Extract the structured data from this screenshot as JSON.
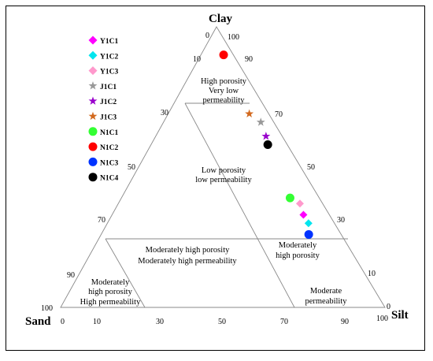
{
  "vertices": {
    "top": "Clay",
    "left": "Sand",
    "right": "Silt"
  },
  "ticks": {
    "left_edge": [
      {
        "label": "0"
      },
      {
        "label": "10"
      },
      {
        "label": "30"
      },
      {
        "label": "50"
      },
      {
        "label": "70"
      },
      {
        "label": "90"
      },
      {
        "label": "100"
      }
    ],
    "right_edge": [
      {
        "label": "100"
      },
      {
        "label": "90"
      },
      {
        "label": "70"
      },
      {
        "label": "50"
      },
      {
        "label": "30"
      },
      {
        "label": "10"
      },
      {
        "label": "0"
      }
    ],
    "bottom_edge": [
      {
        "label": "0"
      },
      {
        "label": "10"
      },
      {
        "label": "30"
      },
      {
        "label": "50"
      },
      {
        "label": "70"
      },
      {
        "label": "90"
      },
      {
        "label": "100"
      }
    ]
  },
  "regions": [
    {
      "id": "high-porosity-very-low-perm",
      "lines": [
        "High porosity",
        "Very low",
        "permeability"
      ]
    },
    {
      "id": "low-porosity-low-perm",
      "lines": [
        "Low porosity",
        "low permeability"
      ]
    },
    {
      "id": "mod-high-porosity-mod-high-perm",
      "lines": [
        "Moderately high porosity",
        "Moderately high permeability"
      ]
    },
    {
      "id": "mod-high-porosity-sand",
      "lines": [
        "Moderately",
        "high porosity",
        "High permeability"
      ]
    },
    {
      "id": "mod-high-porosity-silt",
      "lines": [
        "Moderately",
        "high porosity"
      ]
    },
    {
      "id": "moderate-perm",
      "lines": [
        "Moderate",
        "permeability"
      ]
    }
  ],
  "samples": [
    {
      "name": "Y1C1",
      "marker": "diamond",
      "color": "#ff00ff",
      "clay": 33,
      "silt": 59
    },
    {
      "name": "Y1C2",
      "marker": "diamond",
      "color": "#00e5ee",
      "clay": 30,
      "silt": 62
    },
    {
      "name": "Y1C3",
      "marker": "diamond",
      "color": "#ff99cc",
      "clay": 37,
      "silt": 56
    },
    {
      "name": "J1C1",
      "marker": "star",
      "color": "#999999",
      "clay": 66,
      "silt": 30
    },
    {
      "name": "J1C2",
      "marker": "star",
      "color": "#9900cc",
      "clay": 61,
      "silt": 34
    },
    {
      "name": "J1C3",
      "marker": "star",
      "color": "#d2691e",
      "clay": 69,
      "silt": 25
    },
    {
      "name": "N1C1",
      "marker": "circle",
      "color": "#33ff33",
      "clay": 39,
      "silt": 52
    },
    {
      "name": "N1C2",
      "marker": "circle",
      "color": "#ff0000",
      "clay": 90,
      "silt": 7
    },
    {
      "name": "N1C3",
      "marker": "circle",
      "color": "#0033ff",
      "clay": 26,
      "silt": 64
    },
    {
      "name": "N1C4",
      "marker": "circle",
      "color": "#000000",
      "clay": 58,
      "silt": 36
    }
  ]
}
